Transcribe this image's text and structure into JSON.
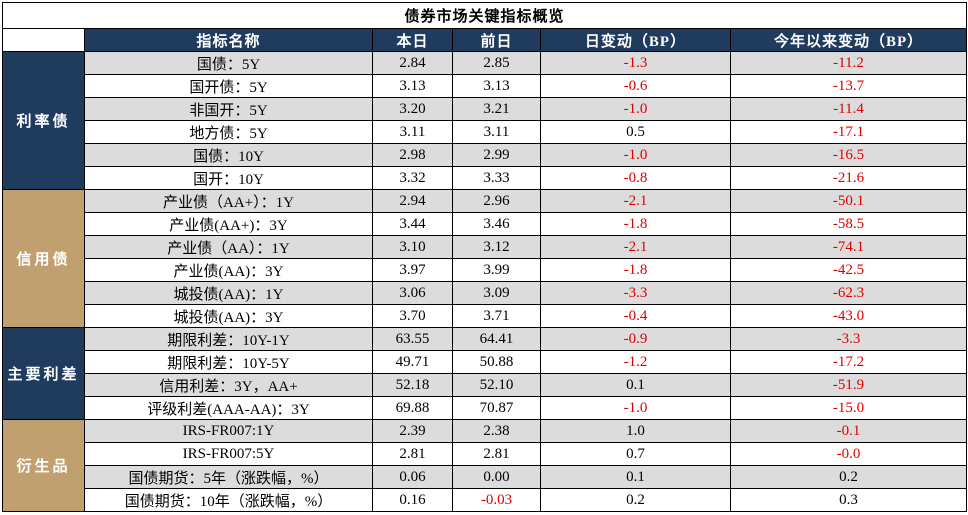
{
  "title": "债券市场关键指标概览",
  "headers": {
    "name": "指标名称",
    "today": "本日",
    "prev": "前日",
    "daily": "日变动（BP）",
    "ytd": "今年以来变动（BP）"
  },
  "groups": [
    {
      "label": "利率债",
      "style": "blue",
      "rows": [
        {
          "name": "国债：5Y",
          "today": "2.84",
          "prev": "2.85",
          "daily": "-1.3",
          "ytd": "-11.2"
        },
        {
          "name": "国开债：5Y",
          "today": "3.13",
          "prev": "3.13",
          "daily": "-0.6",
          "ytd": "-13.7"
        },
        {
          "name": "非国开：5Y",
          "today": "3.20",
          "prev": "3.21",
          "daily": "-1.0",
          "ytd": "-11.4"
        },
        {
          "name": "地方债：5Y",
          "today": "3.11",
          "prev": "3.11",
          "daily": "0.5",
          "ytd": "-17.1"
        },
        {
          "name": "国债：10Y",
          "today": "2.98",
          "prev": "2.99",
          "daily": "-1.0",
          "ytd": "-16.5"
        },
        {
          "name": "国开：10Y",
          "today": "3.32",
          "prev": "3.33",
          "daily": "-0.8",
          "ytd": "-21.6"
        }
      ]
    },
    {
      "label": "信用债",
      "style": "tan",
      "rows": [
        {
          "name": "产业债（AA+）：1Y",
          "today": "2.94",
          "prev": "2.96",
          "daily": "-2.1",
          "ytd": "-50.1"
        },
        {
          "name": "产业债(AA+)：3Y",
          "today": "3.44",
          "prev": "3.46",
          "daily": "-1.8",
          "ytd": "-58.5"
        },
        {
          "name": "产业债（AA）：1Y",
          "today": "3.10",
          "prev": "3.12",
          "daily": "-2.1",
          "ytd": "-74.1"
        },
        {
          "name": "产业债(AA)：3Y",
          "today": "3.97",
          "prev": "3.99",
          "daily": "-1.8",
          "ytd": "-42.5"
        },
        {
          "name": "城投债(AA)：1Y",
          "today": "3.06",
          "prev": "3.09",
          "daily": "-3.3",
          "ytd": "-62.3"
        },
        {
          "name": "城投债(AA)：3Y",
          "today": "3.70",
          "prev": "3.71",
          "daily": "-0.4",
          "ytd": "-43.0"
        }
      ]
    },
    {
      "label": "主要利差",
      "style": "blue",
      "rows": [
        {
          "name": "期限利差：10Y-1Y",
          "today": "63.55",
          "prev": "64.41",
          "daily": "-0.9",
          "ytd": "-3.3"
        },
        {
          "name": "期限利差：10Y-5Y",
          "today": "49.71",
          "prev": "50.88",
          "daily": "-1.2",
          "ytd": "-17.2"
        },
        {
          "name": "信用利差：3Y，AA+",
          "today": "52.18",
          "prev": "52.10",
          "daily": "0.1",
          "ytd": "-51.9"
        },
        {
          "name": "评级利差(AAA-AA)：3Y",
          "today": "69.88",
          "prev": "70.87",
          "daily": "-1.0",
          "ytd": "-15.0"
        }
      ]
    },
    {
      "label": "衍生品",
      "style": "tan",
      "rows": [
        {
          "name": "IRS-FR007:1Y",
          "today": "2.39",
          "prev": "2.38",
          "daily": "1.0",
          "ytd": "-0.1"
        },
        {
          "name": "IRS-FR007:5Y",
          "today": "2.81",
          "prev": "2.81",
          "daily": "0.7",
          "ytd": "-0.0"
        },
        {
          "name": "国债期货：5年（涨跌幅，%）",
          "today": "0.06",
          "prev": "0.00",
          "daily": "0.1",
          "ytd": "0.2"
        },
        {
          "name": "国债期货：10年（涨跌幅，%）",
          "today": "0.16",
          "prev": "-0.03",
          "daily": "0.2",
          "ytd": "0.3"
        }
      ]
    }
  ],
  "colors": {
    "header_blue": "#1f3c5e",
    "category_tan": "#c0a06e",
    "negative_red": "#e00000",
    "row_shade": "#dcdcdc"
  }
}
